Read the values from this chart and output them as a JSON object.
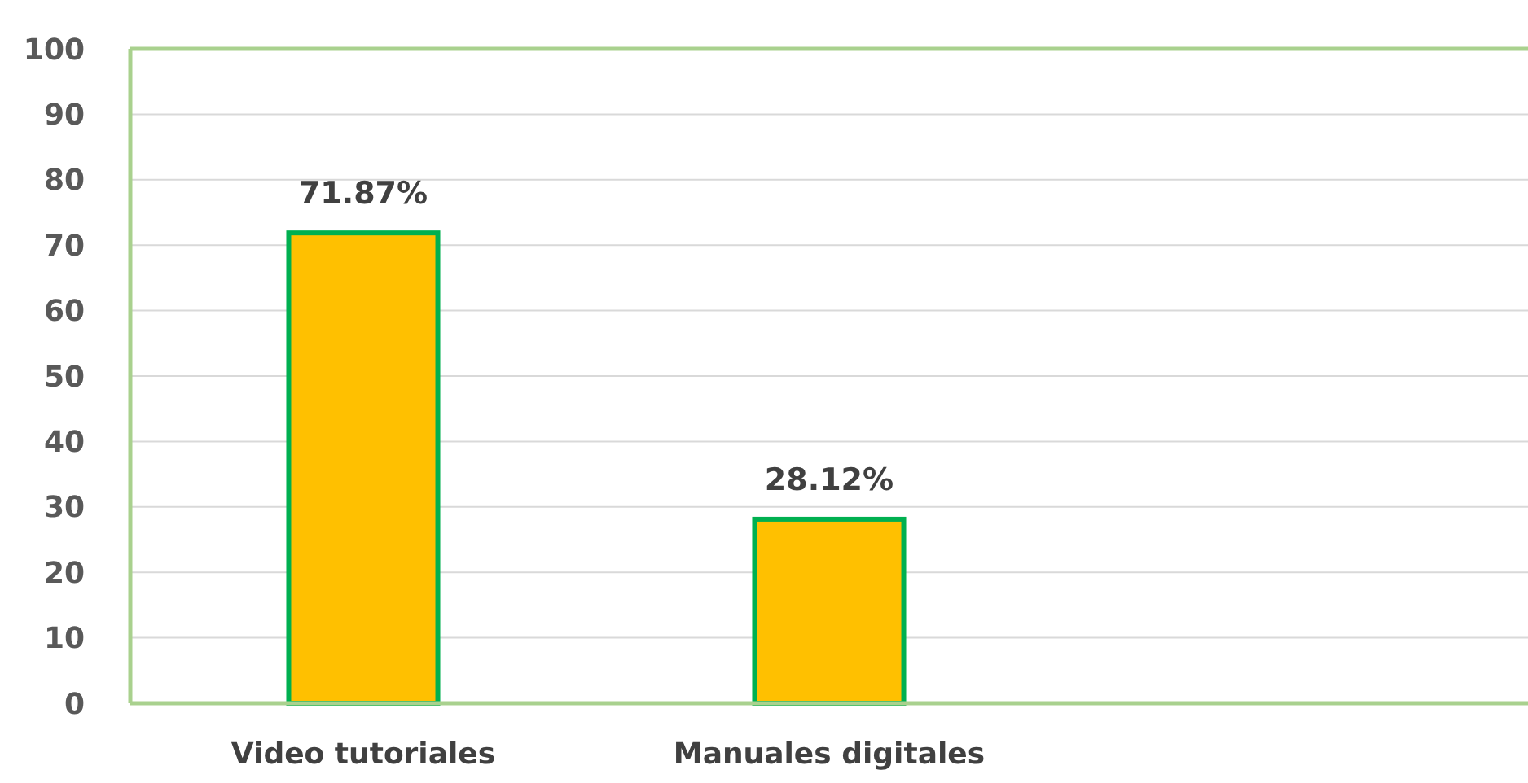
{
  "chart_data": {
    "type": "bar",
    "categories": [
      "Video tutoriales",
      "Manuales digitales",
      null
    ],
    "values": [
      71.87,
      28.12,
      null
    ],
    "value_labels": [
      "71.87%",
      "28.12%",
      null
    ],
    "color": "#ffc000",
    "ylim": [
      0,
      100
    ],
    "yticks": [
      0,
      10,
      20,
      30,
      40,
      50,
      60,
      70,
      80,
      90,
      100
    ],
    "grid": "y"
  }
}
